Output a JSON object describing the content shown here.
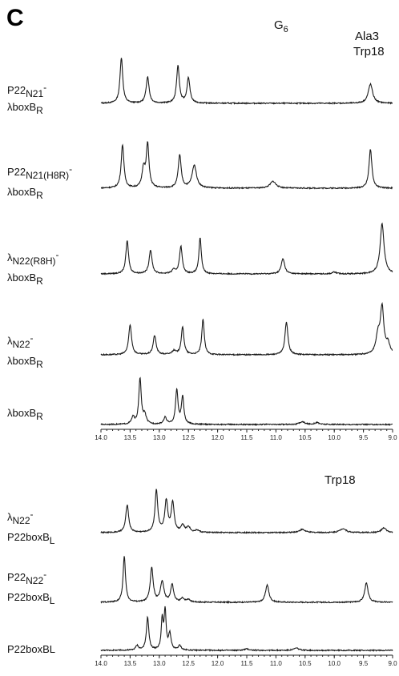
{
  "panel_letter": "C",
  "annotations": {
    "g6": {
      "main": "G",
      "sub": "6"
    },
    "ala3": "Ala3",
    "trp18_top": "Trp18",
    "trp18_bottom": "Trp18"
  },
  "chart_data": {
    "type": "line",
    "xlabel": "",
    "ylabel": "",
    "x_reversed": true,
    "axes": [
      {
        "id": "axis-top",
        "xlim": [
          14.0,
          9.0
        ],
        "ticks": [
          "14.0",
          "13.5",
          "13.0",
          "12.5",
          "12.0",
          "11.5",
          "11.0",
          "10.5",
          "10.0",
          "9.5",
          "9.0"
        ]
      },
      {
        "id": "axis-bottom",
        "xlim": [
          14.0,
          9.0
        ],
        "ticks": [
          "14.0",
          "13.5",
          "13.0",
          "12.5",
          "12.0",
          "11.5",
          "11.0",
          "10.5",
          "10.0",
          "9.5",
          "9.0"
        ]
      }
    ],
    "series": [
      {
        "id": "s1",
        "group": 0,
        "label": [
          {
            "t": "P22",
            "s": ""
          },
          {
            "t": "N21",
            "s": "sub"
          },
          {
            "t": "-",
            "s": "sup"
          }
        ],
        "label2": [
          {
            "t": "λboxB",
            "s": ""
          },
          {
            "t": "R",
            "s": "sub"
          }
        ],
        "peaks": [
          [
            13.65,
            1.0,
            0.028
          ],
          [
            13.2,
            0.58,
            0.03
          ],
          [
            12.68,
            0.82,
            0.028
          ],
          [
            12.5,
            0.55,
            0.03
          ],
          [
            9.38,
            0.42,
            0.045
          ]
        ]
      },
      {
        "id": "s2",
        "group": 0,
        "label": [
          {
            "t": "P22",
            "s": ""
          },
          {
            "t": "N21(H8R)",
            "s": "sub"
          },
          {
            "t": "-",
            "s": "sup"
          }
        ],
        "label2": [
          {
            "t": "λboxB",
            "s": ""
          },
          {
            "t": "R",
            "s": "sub"
          }
        ],
        "peaks": [
          [
            13.63,
            0.95,
            0.028
          ],
          [
            13.27,
            0.42,
            0.03
          ],
          [
            13.2,
            0.95,
            0.028
          ],
          [
            12.65,
            0.72,
            0.03
          ],
          [
            12.4,
            0.5,
            0.045
          ],
          [
            11.05,
            0.15,
            0.06
          ],
          [
            9.38,
            0.85,
            0.03
          ]
        ]
      },
      {
        "id": "s3",
        "group": 0,
        "label": [
          {
            "t": "λ",
            "s": ""
          },
          {
            "t": "N22(R8H)",
            "s": "sub"
          },
          {
            "t": "-",
            "s": "sup"
          }
        ],
        "label2": [
          {
            "t": "λboxB",
            "s": ""
          },
          {
            "t": "R",
            "s": "sub"
          }
        ],
        "peaks": [
          [
            13.55,
            0.72,
            0.028
          ],
          [
            13.15,
            0.52,
            0.03
          ],
          [
            12.75,
            0.08,
            0.04
          ],
          [
            12.63,
            0.6,
            0.028
          ],
          [
            12.3,
            0.78,
            0.025
          ],
          [
            10.88,
            0.33,
            0.035
          ],
          [
            10.0,
            0.04,
            0.04
          ],
          [
            9.18,
            1.1,
            0.04
          ]
        ]
      },
      {
        "id": "s4",
        "group": 0,
        "label": [
          {
            "t": "λ",
            "s": ""
          },
          {
            "t": "N22",
            "s": "sub"
          },
          {
            "t": "-",
            "s": "sup"
          }
        ],
        "label2": [
          {
            "t": "λboxB",
            "s": ""
          },
          {
            "t": "R",
            "s": "sub"
          }
        ],
        "peaks": [
          [
            13.5,
            0.65,
            0.03
          ],
          [
            13.08,
            0.42,
            0.03
          ],
          [
            12.75,
            0.08,
            0.04
          ],
          [
            12.6,
            0.6,
            0.028
          ],
          [
            12.25,
            0.78,
            0.025
          ],
          [
            10.82,
            0.72,
            0.03
          ],
          [
            9.25,
            0.4,
            0.04
          ],
          [
            9.18,
            1.0,
            0.035
          ],
          [
            9.08,
            0.22,
            0.04
          ]
        ]
      },
      {
        "id": "s5",
        "group": 0,
        "label": [
          {
            "t": "λboxB",
            "s": ""
          },
          {
            "t": "R",
            "s": "sub"
          }
        ],
        "label2": [],
        "peaks": [
          [
            13.45,
            0.15,
            0.03
          ],
          [
            13.33,
            1.0,
            0.025
          ],
          [
            13.25,
            0.2,
            0.03
          ],
          [
            12.9,
            0.15,
            0.03
          ],
          [
            12.7,
            0.75,
            0.025
          ],
          [
            12.6,
            0.6,
            0.025
          ],
          [
            10.55,
            0.06,
            0.05
          ],
          [
            10.3,
            0.04,
            0.05
          ]
        ]
      },
      {
        "id": "s6",
        "group": 1,
        "label": [
          {
            "t": "λ",
            "s": ""
          },
          {
            "t": "N22",
            "s": "sub"
          },
          {
            "t": "-",
            "s": "sup"
          }
        ],
        "label2": [
          {
            "t": "P22boxB",
            "s": ""
          },
          {
            "t": "L",
            "s": "sub"
          }
        ],
        "peaks": [
          [
            13.55,
            0.6,
            0.03
          ],
          [
            13.05,
            0.92,
            0.028
          ],
          [
            12.88,
            0.68,
            0.03
          ],
          [
            12.77,
            0.65,
            0.03
          ],
          [
            12.6,
            0.15,
            0.035
          ],
          [
            12.5,
            0.12,
            0.035
          ],
          [
            12.35,
            0.05,
            0.04
          ],
          [
            10.55,
            0.07,
            0.06
          ],
          [
            9.85,
            0.09,
            0.06
          ],
          [
            9.15,
            0.1,
            0.05
          ]
        ]
      },
      {
        "id": "s7",
        "group": 1,
        "label": [
          {
            "t": "P22",
            "s": ""
          },
          {
            "t": "N22",
            "s": "sub"
          },
          {
            "t": "-",
            "s": "sup"
          }
        ],
        "label2": [
          {
            "t": "P22boxB",
            "s": ""
          },
          {
            "t": "L",
            "s": "sub"
          }
        ],
        "peaks": [
          [
            13.6,
            1.0,
            0.025
          ],
          [
            13.13,
            0.75,
            0.03
          ],
          [
            12.95,
            0.45,
            0.035
          ],
          [
            12.78,
            0.38,
            0.03
          ],
          [
            12.6,
            0.08,
            0.035
          ],
          [
            12.5,
            0.06,
            0.035
          ],
          [
            11.15,
            0.38,
            0.035
          ],
          [
            9.45,
            0.42,
            0.035
          ]
        ]
      },
      {
        "id": "s8",
        "group": 1,
        "label": [
          {
            "t": "P22boxBL",
            "s": ""
          }
        ],
        "label2": [],
        "peaks": [
          [
            13.38,
            0.1,
            0.03
          ],
          [
            13.2,
            0.72,
            0.025
          ],
          [
            12.95,
            0.65,
            0.02
          ],
          [
            12.9,
            0.85,
            0.02
          ],
          [
            12.82,
            0.35,
            0.025
          ],
          [
            12.65,
            0.1,
            0.03
          ],
          [
            11.5,
            0.03,
            0.05
          ],
          [
            10.65,
            0.05,
            0.05
          ]
        ]
      }
    ]
  }
}
